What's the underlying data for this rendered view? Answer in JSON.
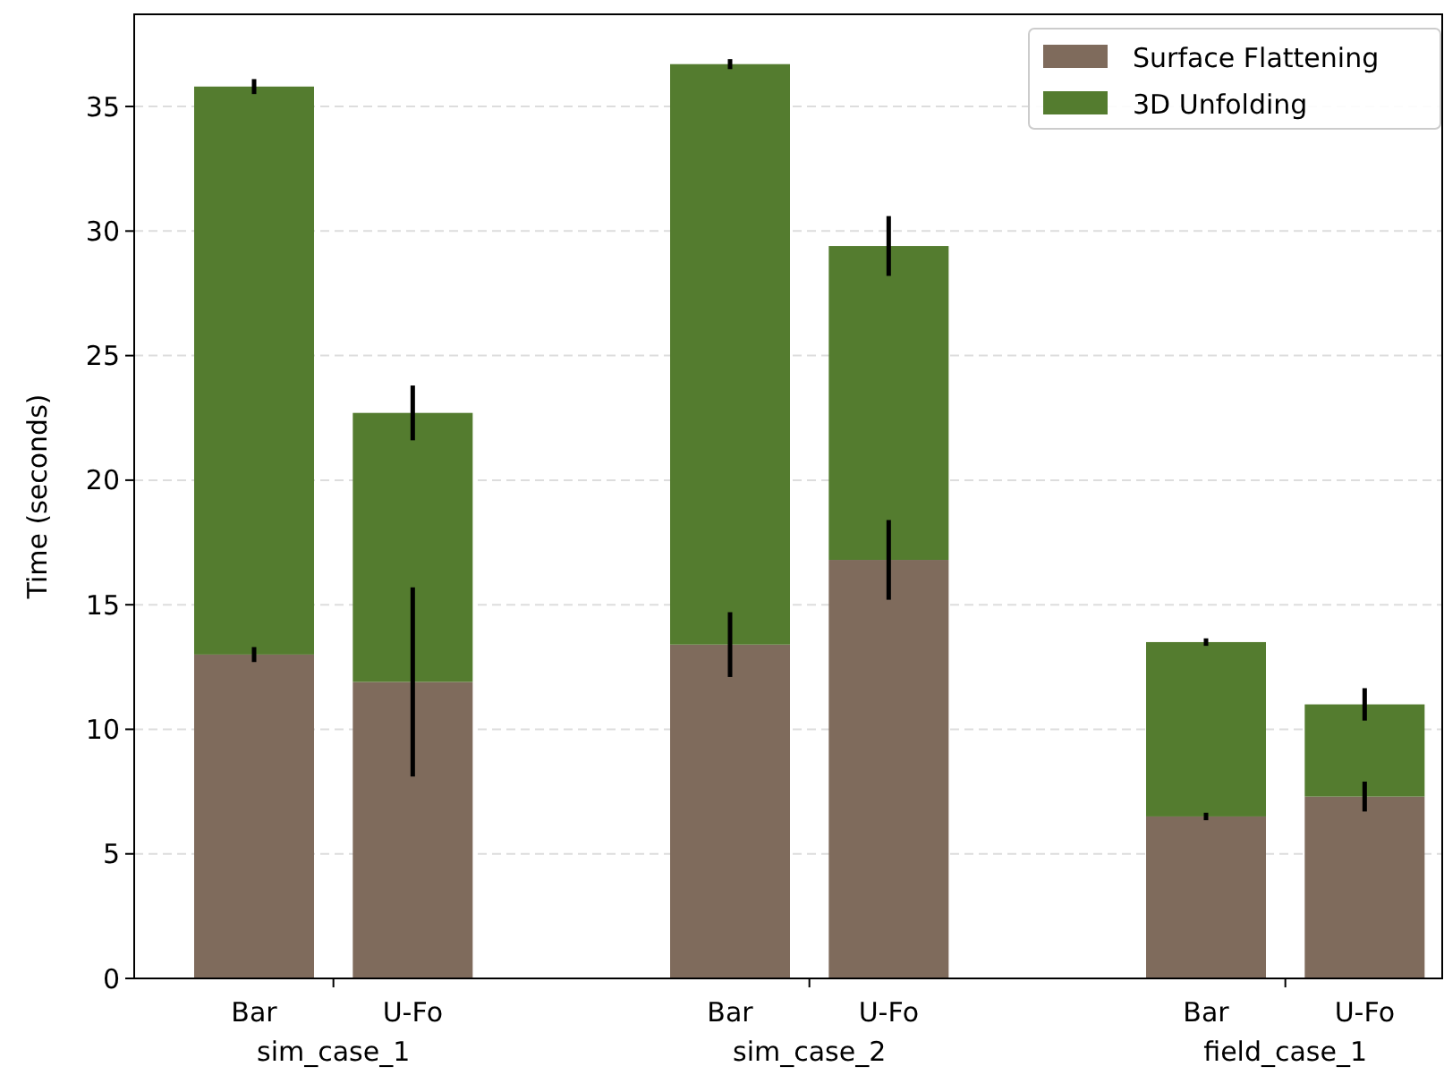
{
  "chart_data": {
    "type": "bar",
    "stacked": true,
    "ylabel": "Time (seconds)",
    "categories": [
      "Bar",
      "U-Fo",
      null,
      "Bar",
      "U-Fo",
      null,
      "Bar",
      "U-Fo"
    ],
    "series": [
      {
        "name": "Surface Flattening",
        "color": "#7f6b5c",
        "values": [
          13.0,
          11.9,
          null,
          13.4,
          16.8,
          null,
          6.5,
          7.3
        ],
        "errors": [
          0.3,
          3.8,
          null,
          1.3,
          1.6,
          null,
          0.15,
          0.6
        ]
      },
      {
        "name": "3D Unfolding",
        "color": "#547c2f",
        "values": [
          22.8,
          10.8,
          null,
          23.3,
          12.6,
          null,
          7.0,
          3.7
        ],
        "errors": [
          0.3,
          1.1,
          null,
          0.2,
          1.2,
          null,
          0.15,
          0.65
        ]
      }
    ],
    "ylim": [
      0,
      38.7
    ],
    "yticks": [
      0,
      5,
      10,
      15,
      20,
      25,
      30,
      35
    ],
    "grid": "y",
    "legend": "top right",
    "annotations": [
      "sim_case_1",
      "sim_case_2",
      "field_case_1"
    ]
  }
}
